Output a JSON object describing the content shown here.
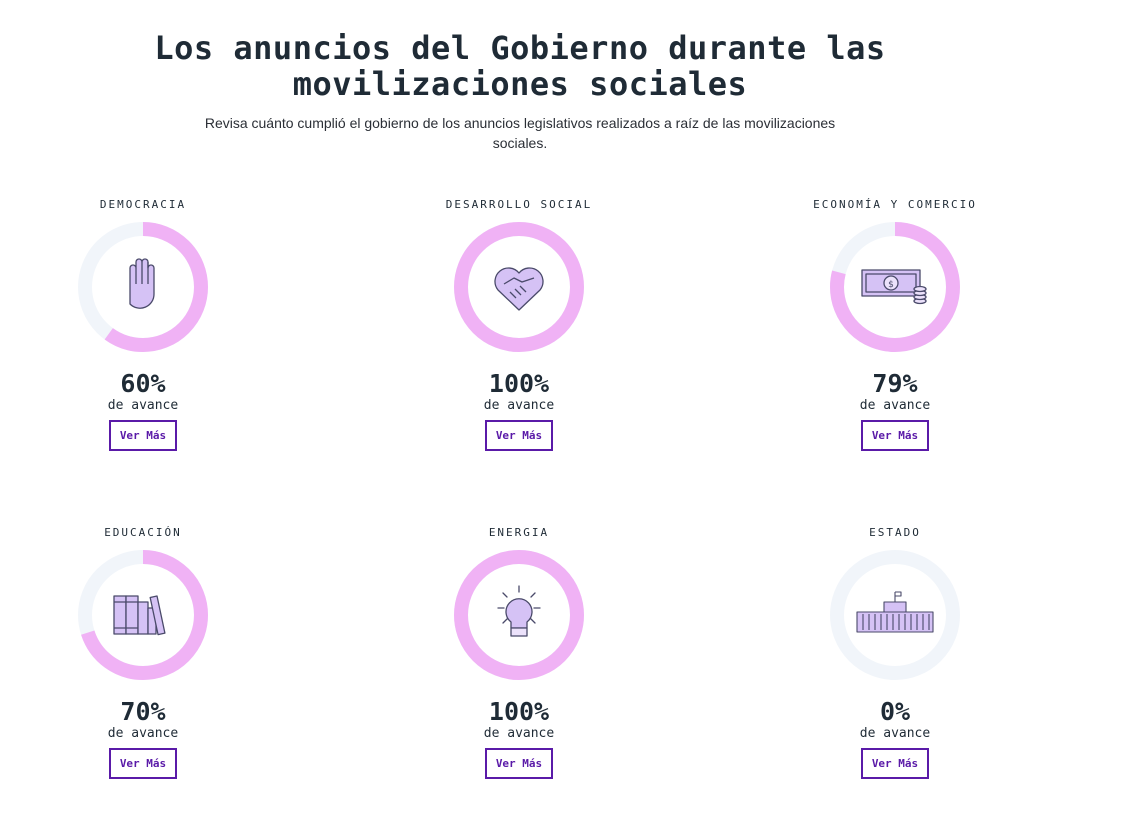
{
  "header": {
    "title_line1": "Los anuncios del Gobierno durante las",
    "title_line2": "movilizaciones sociales",
    "subtitle_line1": "Revisa cuánto cumplió el gobierno de los anuncios legislativos realizados a raíz de las movilizaciones",
    "subtitle_line2": "sociales."
  },
  "colors": {
    "ring_fill": "#f0b2f5",
    "ring_track": "#f1f5fa",
    "button": "#5a1aa8",
    "icon_fill": "#d5c2f5",
    "icon_stroke": "#4a4a6a"
  },
  "cards": [
    {
      "category": "DEMOCRACIA",
      "progress": 0.6,
      "percent_label": "60%",
      "sub_label": "de avance",
      "button_label": "Ver Más",
      "icon": "raised-hand-icon"
    },
    {
      "category": "DESARROLLO SOCIAL",
      "progress": 1.0,
      "percent_label": "100%",
      "sub_label": "de avance",
      "button_label": "Ver Más",
      "icon": "handshake-heart-icon"
    },
    {
      "category": "ECONOMÍA Y COMERCIO",
      "progress": 0.79,
      "percent_label": "79%",
      "sub_label": "de avance",
      "button_label": "Ver Más",
      "icon": "money-bill-icon"
    },
    {
      "category": "EDUCACIÓN",
      "progress": 0.7,
      "percent_label": "70%",
      "sub_label": "de avance",
      "button_label": "Ver Más",
      "icon": "books-icon"
    },
    {
      "category": "ENERGIA",
      "progress": 1.0,
      "percent_label": "100%",
      "sub_label": "de avance",
      "button_label": "Ver Más",
      "icon": "lightbulb-icon"
    },
    {
      "category": "ESTADO",
      "progress": 0.0,
      "percent_label": "0%",
      "sub_label": "de avance",
      "button_label": "Ver Más",
      "icon": "government-building-icon"
    }
  ]
}
